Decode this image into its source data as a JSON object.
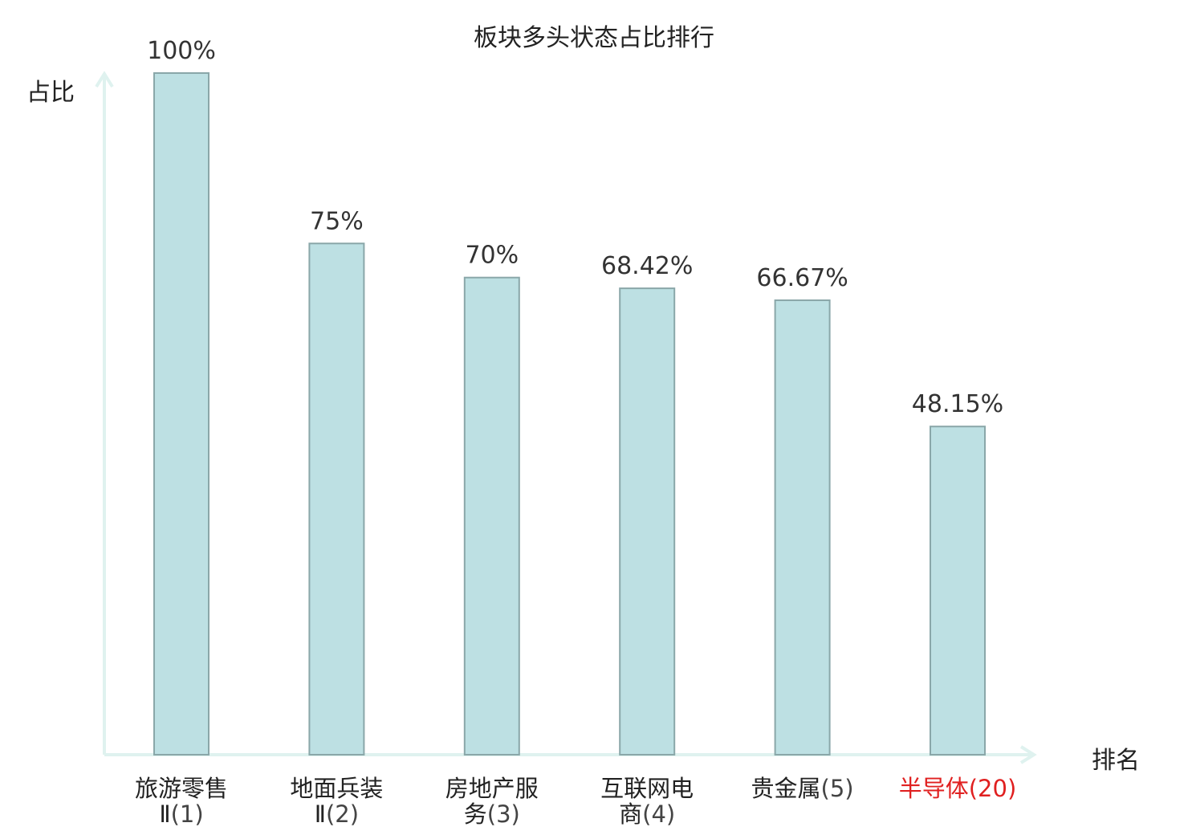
{
  "chart_data": {
    "type": "bar",
    "title": "板块多头状态占比排行",
    "ylabel": "占比",
    "xlabel": "排名",
    "ylim": [
      0,
      100
    ],
    "grid": false,
    "categories": [
      {
        "name": "旅游零售Ⅱ",
        "rank": "(1)",
        "value": 100,
        "label": "100%",
        "highlight": false
      },
      {
        "name": "地面兵装Ⅱ",
        "rank": "(2)",
        "value": 75,
        "label": "75%",
        "highlight": false
      },
      {
        "name": "房地产服务",
        "rank": "(3)",
        "value": 70,
        "label": "70%",
        "highlight": false
      },
      {
        "name": "互联网电商",
        "rank": "(4)",
        "value": 68.42,
        "label": "68.42%",
        "highlight": false
      },
      {
        "name": "贵金属",
        "rank": "(5)",
        "value": 66.67,
        "label": "66.67%",
        "highlight": false
      },
      {
        "name": "半导体",
        "rank": "(20)",
        "value": 48.15,
        "label": "48.15%",
        "highlight": true
      }
    ],
    "colors": {
      "bar_fill": "#bde0e3",
      "bar_stroke": "#8aa7a9",
      "axis": "#dff2ef",
      "highlight": "#e02020"
    }
  }
}
